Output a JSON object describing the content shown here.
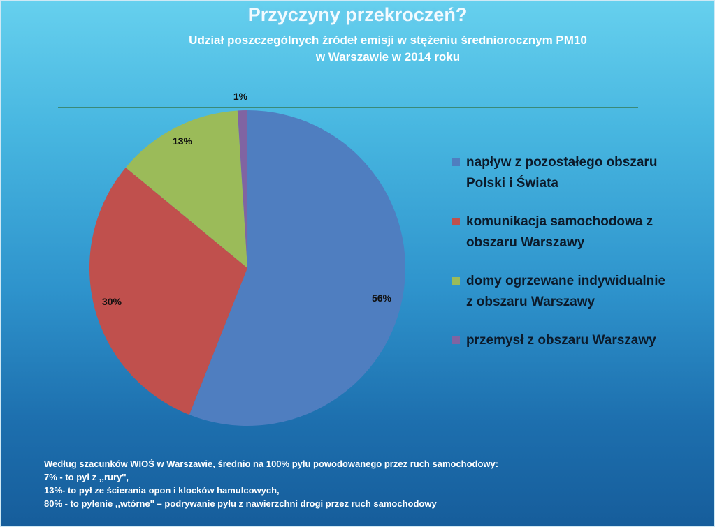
{
  "colors": {
    "s1": "#4f7ec0",
    "s2": "#c0504d",
    "s3": "#9bbb59",
    "s4": "#8064a2"
  },
  "chart_data": {
    "type": "pie",
    "title": "Przyczyny przekroczeń?",
    "subtitle_line1": "Udział poszczególnych źródeł emisji w stężeniu średniorocznym PM10",
    "subtitle_line2": "w Warszawie w 2014 roku",
    "start_angle_deg": 0,
    "direction": "clockwise",
    "slices": [
      {
        "label": "napływ z pozostałego obszaru Polski i Świata",
        "label_line1": "napływ z pozostałego obszaru",
        "label_line2": "Polski i Świata",
        "value": 56,
        "display": "56%",
        "color": "#4f7ec0"
      },
      {
        "label": "komunikacja samochodowa z obszaru Warszawy",
        "label_line1": "komunikacja samochodowa z",
        "label_line2": "obszaru Warszawy",
        "value": 30,
        "display": "30%",
        "color": "#c0504d"
      },
      {
        "label": "domy ogrzewane indywidualnie z obszaru Warszawy",
        "label_line1": "domy ogrzewane indywidualnie",
        "label_line2": "z obszaru Warszawy",
        "value": 13,
        "display": "13%",
        "color": "#9bbb59"
      },
      {
        "label": "przemysł z obszaru Warszawy",
        "label_line1": "przemysł z obszaru Warszawy",
        "label_line2": "",
        "value": 1,
        "display": "1%",
        "color": "#8064a2"
      }
    ],
    "legend_position": "right"
  },
  "footnote": {
    "line1": "Według szacunków WIOŚ w Warszawie, średnio na 100% pyłu powodowanego przez ruch samochodowy:",
    "line2": "7% - to pył z ,,rury'',",
    "line3": "13%- to pył ze ścierania opon i klocków hamulcowych,",
    "line4": "80% - to pylenie ,,wtórne'' – podrywanie pyłu z nawierzchni drogi przez ruch samochodowy"
  }
}
